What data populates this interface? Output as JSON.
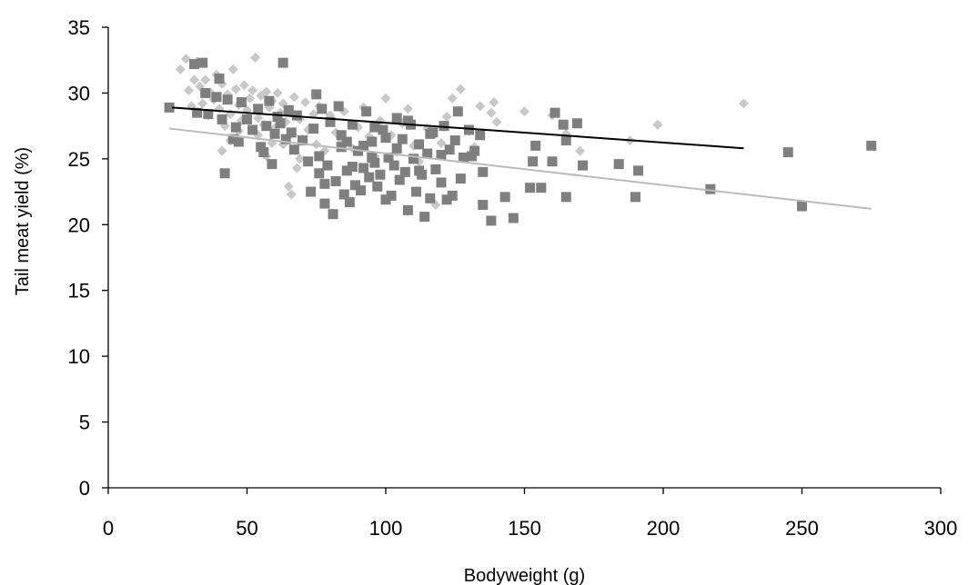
{
  "chart_data": {
    "type": "scatter",
    "xlabel": "Bodyweight (g)",
    "ylabel": "Tail meat yield (%)",
    "xlim": [
      0,
      300
    ],
    "ylim": [
      0,
      35
    ],
    "xticks": [
      0,
      50,
      100,
      150,
      200,
      250,
      300
    ],
    "yticks": [
      0,
      5,
      10,
      15,
      20,
      25,
      30,
      35
    ],
    "grid": false,
    "legend": "none",
    "series": [
      {
        "marker": "diamond",
        "color": "#c8c8c8",
        "points": [
          [
            26,
            31.8
          ],
          [
            28,
            32.6
          ],
          [
            29,
            30.2
          ],
          [
            30,
            29.0
          ],
          [
            31,
            31.0
          ],
          [
            32,
            32.4
          ],
          [
            33,
            30.5
          ],
          [
            34,
            29.2
          ],
          [
            35,
            31.0
          ],
          [
            36,
            28.3
          ],
          [
            37,
            30.0
          ],
          [
            38,
            29.5
          ],
          [
            39,
            31.4
          ],
          [
            40,
            28.8
          ],
          [
            41,
            30.7
          ],
          [
            42,
            27.5
          ],
          [
            43,
            29.9
          ],
          [
            44,
            28.4
          ],
          [
            45,
            31.8
          ],
          [
            46,
            30.3
          ],
          [
            47,
            29.1
          ],
          [
            48,
            27.9
          ],
          [
            49,
            30.6
          ],
          [
            50,
            28.7
          ],
          [
            51,
            29.6
          ],
          [
            52,
            30.2
          ],
          [
            53,
            32.7
          ],
          [
            54,
            28.1
          ],
          [
            55,
            29.8
          ],
          [
            56,
            27.6
          ],
          [
            57,
            30.1
          ],
          [
            58,
            28.9
          ],
          [
            59,
            29.4
          ],
          [
            60,
            27.3
          ],
          [
            61,
            30.0
          ],
          [
            62,
            28.5
          ],
          [
            63,
            29.2
          ],
          [
            64,
            27.8
          ],
          [
            65,
            28.6
          ],
          [
            66,
            26.9
          ],
          [
            67,
            29.7
          ],
          [
            68,
            24.3
          ],
          [
            69,
            28.0
          ],
          [
            70,
            26.5
          ],
          [
            71,
            29.3
          ],
          [
            72,
            27.2
          ],
          [
            74,
            28.4
          ],
          [
            75,
            26.1
          ],
          [
            76,
            29.0
          ],
          [
            78,
            25.6
          ],
          [
            80,
            28.3
          ],
          [
            82,
            27.0
          ],
          [
            84,
            26.3
          ],
          [
            85,
            28.6
          ],
          [
            88,
            25.8
          ],
          [
            90,
            27.4
          ],
          [
            92,
            28.9
          ],
          [
            94,
            26.7
          ],
          [
            96,
            25.2
          ],
          [
            98,
            27.9
          ],
          [
            100,
            29.6
          ],
          [
            102,
            26.8
          ],
          [
            104,
            25.5
          ],
          [
            106,
            27.7
          ],
          [
            108,
            28.8
          ],
          [
            110,
            26.0
          ],
          [
            112,
            24.8
          ],
          [
            115,
            27.3
          ],
          [
            118,
            21.5
          ],
          [
            120,
            26.2
          ],
          [
            122,
            28.2
          ],
          [
            124,
            29.6
          ],
          [
            127,
            30.3
          ],
          [
            130,
            27.1
          ],
          [
            132,
            25.9
          ],
          [
            134,
            29.0
          ],
          [
            138,
            28.5
          ],
          [
            139,
            29.3
          ],
          [
            140,
            27.8
          ],
          [
            150,
            28.6
          ],
          [
            160,
            28.3
          ],
          [
            165,
            26.9
          ],
          [
            170,
            25.6
          ],
          [
            188,
            26.4
          ],
          [
            198,
            27.6
          ],
          [
            229,
            29.2
          ],
          [
            41,
            25.6
          ],
          [
            44,
            26.4
          ],
          [
            57,
            25.2
          ],
          [
            63,
            26.1
          ],
          [
            65,
            22.9
          ],
          [
            66,
            22.3
          ],
          [
            47,
            27.1
          ],
          [
            54,
            26.8
          ],
          [
            59,
            26.2
          ],
          [
            69,
            25.0
          ]
        ]
      },
      {
        "marker": "square",
        "color": "#7f7f7f",
        "points": [
          [
            22,
            28.9
          ],
          [
            31,
            32.2
          ],
          [
            32,
            28.5
          ],
          [
            34,
            32.3
          ],
          [
            35,
            30.0
          ],
          [
            36,
            28.4
          ],
          [
            39,
            29.7
          ],
          [
            40,
            31.1
          ],
          [
            41,
            28.0
          ],
          [
            42,
            23.9
          ],
          [
            43,
            29.5
          ],
          [
            45,
            26.5
          ],
          [
            46,
            27.4
          ],
          [
            47,
            26.3
          ],
          [
            48,
            29.3
          ],
          [
            50,
            28.0
          ],
          [
            52,
            27.2
          ],
          [
            54,
            28.8
          ],
          [
            55,
            25.9
          ],
          [
            56,
            25.5
          ],
          [
            57,
            27.5
          ],
          [
            58,
            29.4
          ],
          [
            59,
            24.6
          ],
          [
            60,
            26.9
          ],
          [
            61,
            28.2
          ],
          [
            62,
            27.7
          ],
          [
            63,
            32.3
          ],
          [
            64,
            26.5
          ],
          [
            65,
            28.7
          ],
          [
            66,
            27.0
          ],
          [
            67,
            25.7
          ],
          [
            68,
            28.3
          ],
          [
            70,
            26.4
          ],
          [
            72,
            24.8
          ],
          [
            73,
            22.5
          ],
          [
            74,
            27.3
          ],
          [
            75,
            29.9
          ],
          [
            76,
            23.9
          ],
          [
            77,
            28.8
          ],
          [
            78,
            21.6
          ],
          [
            79,
            24.5
          ],
          [
            80,
            27.8
          ],
          [
            81,
            20.8
          ],
          [
            82,
            23.3
          ],
          [
            83,
            29.0
          ],
          [
            84,
            25.9
          ],
          [
            85,
            22.3
          ],
          [
            86,
            24.1
          ],
          [
            87,
            21.7
          ],
          [
            88,
            27.6
          ],
          [
            89,
            23.0
          ],
          [
            90,
            25.6
          ],
          [
            91,
            22.6
          ],
          [
            92,
            24.3
          ],
          [
            93,
            28.6
          ],
          [
            94,
            23.6
          ],
          [
            95,
            26.3
          ],
          [
            96,
            24.7
          ],
          [
            97,
            22.9
          ],
          [
            98,
            23.8
          ],
          [
            99,
            27.2
          ],
          [
            100,
            21.9
          ],
          [
            101,
            25.1
          ],
          [
            102,
            22.2
          ],
          [
            103,
            24.5
          ],
          [
            104,
            28.1
          ],
          [
            105,
            23.4
          ],
          [
            106,
            26.5
          ],
          [
            107,
            24.0
          ],
          [
            108,
            21.1
          ],
          [
            109,
            27.6
          ],
          [
            110,
            25.0
          ],
          [
            111,
            22.5
          ],
          [
            112,
            26.1
          ],
          [
            113,
            23.8
          ],
          [
            114,
            20.6
          ],
          [
            115,
            25.4
          ],
          [
            116,
            22.0
          ],
          [
            117,
            27.0
          ],
          [
            118,
            24.2
          ],
          [
            120,
            23.2
          ],
          [
            121,
            27.5
          ],
          [
            122,
            21.9
          ],
          [
            123,
            25.7
          ],
          [
            124,
            22.2
          ],
          [
            125,
            26.4
          ],
          [
            126,
            28.6
          ],
          [
            127,
            23.5
          ],
          [
            128,
            25.1
          ],
          [
            130,
            27.2
          ],
          [
            131,
            25.2
          ],
          [
            132,
            25.6
          ],
          [
            134,
            26.8
          ],
          [
            135,
            24.0
          ],
          [
            135,
            21.5
          ],
          [
            138,
            20.3
          ],
          [
            143,
            22.1
          ],
          [
            146,
            20.5
          ],
          [
            152,
            22.8
          ],
          [
            153,
            24.8
          ],
          [
            154,
            26.0
          ],
          [
            156,
            22.8
          ],
          [
            160,
            24.8
          ],
          [
            161,
            28.5
          ],
          [
            164,
            27.6
          ],
          [
            165,
            22.1
          ],
          [
            165,
            26.4
          ],
          [
            169,
            27.7
          ],
          [
            171,
            24.5
          ],
          [
            184,
            24.6
          ],
          [
            190,
            22.1
          ],
          [
            191,
            24.1
          ],
          [
            217,
            22.7
          ],
          [
            245,
            25.5
          ],
          [
            250,
            21.4
          ],
          [
            275,
            26.0
          ],
          [
            76,
            25.2
          ],
          [
            78,
            23.1
          ],
          [
            84,
            26.8
          ],
          [
            88,
            24.4
          ],
          [
            92,
            26.0
          ],
          [
            96,
            27.4
          ],
          [
            100,
            26.6
          ],
          [
            104,
            25.8
          ],
          [
            108,
            27.9
          ],
          [
            112,
            24.1
          ],
          [
            116,
            26.9
          ],
          [
            120,
            25.3
          ],
          [
            86,
            26.3
          ],
          [
            95,
            25.1
          ]
        ]
      }
    ],
    "trendlines": [
      {
        "color": "#000000",
        "x": [
          23,
          229
        ],
        "y": [
          28.9,
          25.8
        ]
      },
      {
        "color": "#bbbbbb",
        "x": [
          22,
          275
        ],
        "y": [
          27.3,
          21.2
        ]
      }
    ]
  }
}
